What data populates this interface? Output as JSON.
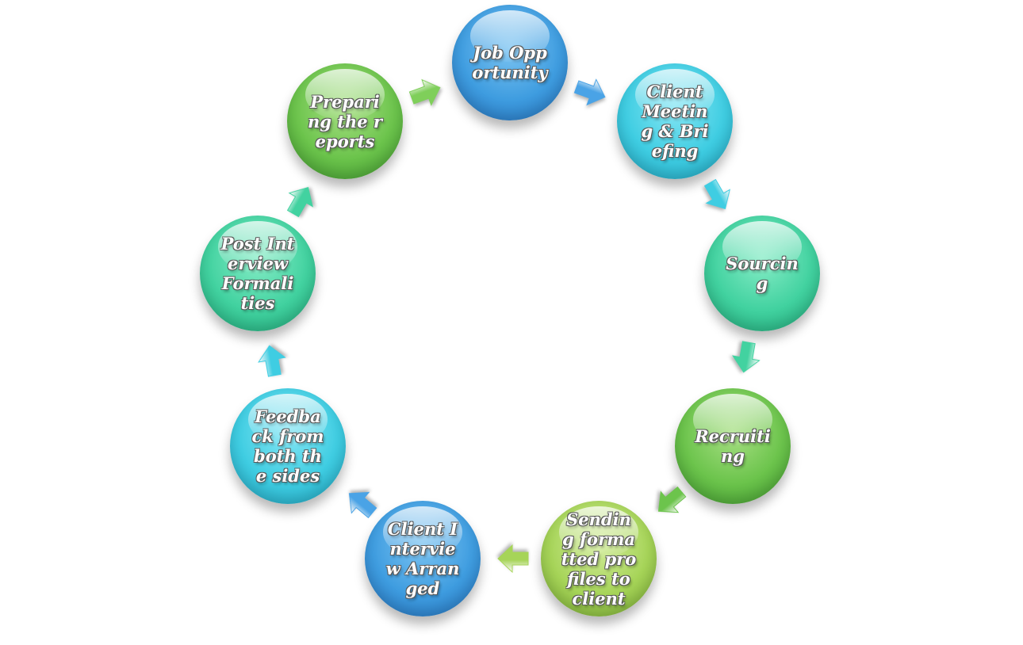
{
  "diagram": {
    "nodes": [
      {
        "id": "job-opportunity",
        "label": "Job Opportunity",
        "color": "#3f9de0"
      },
      {
        "id": "client-meeting",
        "label": "Client Meeting & Briefing",
        "color": "#3fcde2"
      },
      {
        "id": "sourcing",
        "label": "Sourcing",
        "color": "#42d2a0"
      },
      {
        "id": "recruiting",
        "label": "Recruiting",
        "color": "#6cc44c"
      },
      {
        "id": "sending-profiles",
        "label": "Sending formatted profiles to client",
        "color": "#a6d458"
      },
      {
        "id": "client-interview",
        "label": "Client Interview Arranged",
        "color": "#3f9de0"
      },
      {
        "id": "feedback",
        "label": "Feedback from both the sides",
        "color": "#3fcde2"
      },
      {
        "id": "post-interview",
        "label": "Post Interview Formalities",
        "color": "#42d2a0"
      },
      {
        "id": "preparing-reports",
        "label": "Preparing the reports",
        "color": "#6cc44c"
      }
    ],
    "arrow_colors": [
      "#4aa3e6",
      "#3fcde2",
      "#42d2a0",
      "#6cc44c",
      "#a6d458",
      "#4aa3e6",
      "#3fcde2",
      "#42d2a0",
      "#7fcf5a"
    ],
    "icons": {
      "connector": "arrow-icon"
    }
  }
}
